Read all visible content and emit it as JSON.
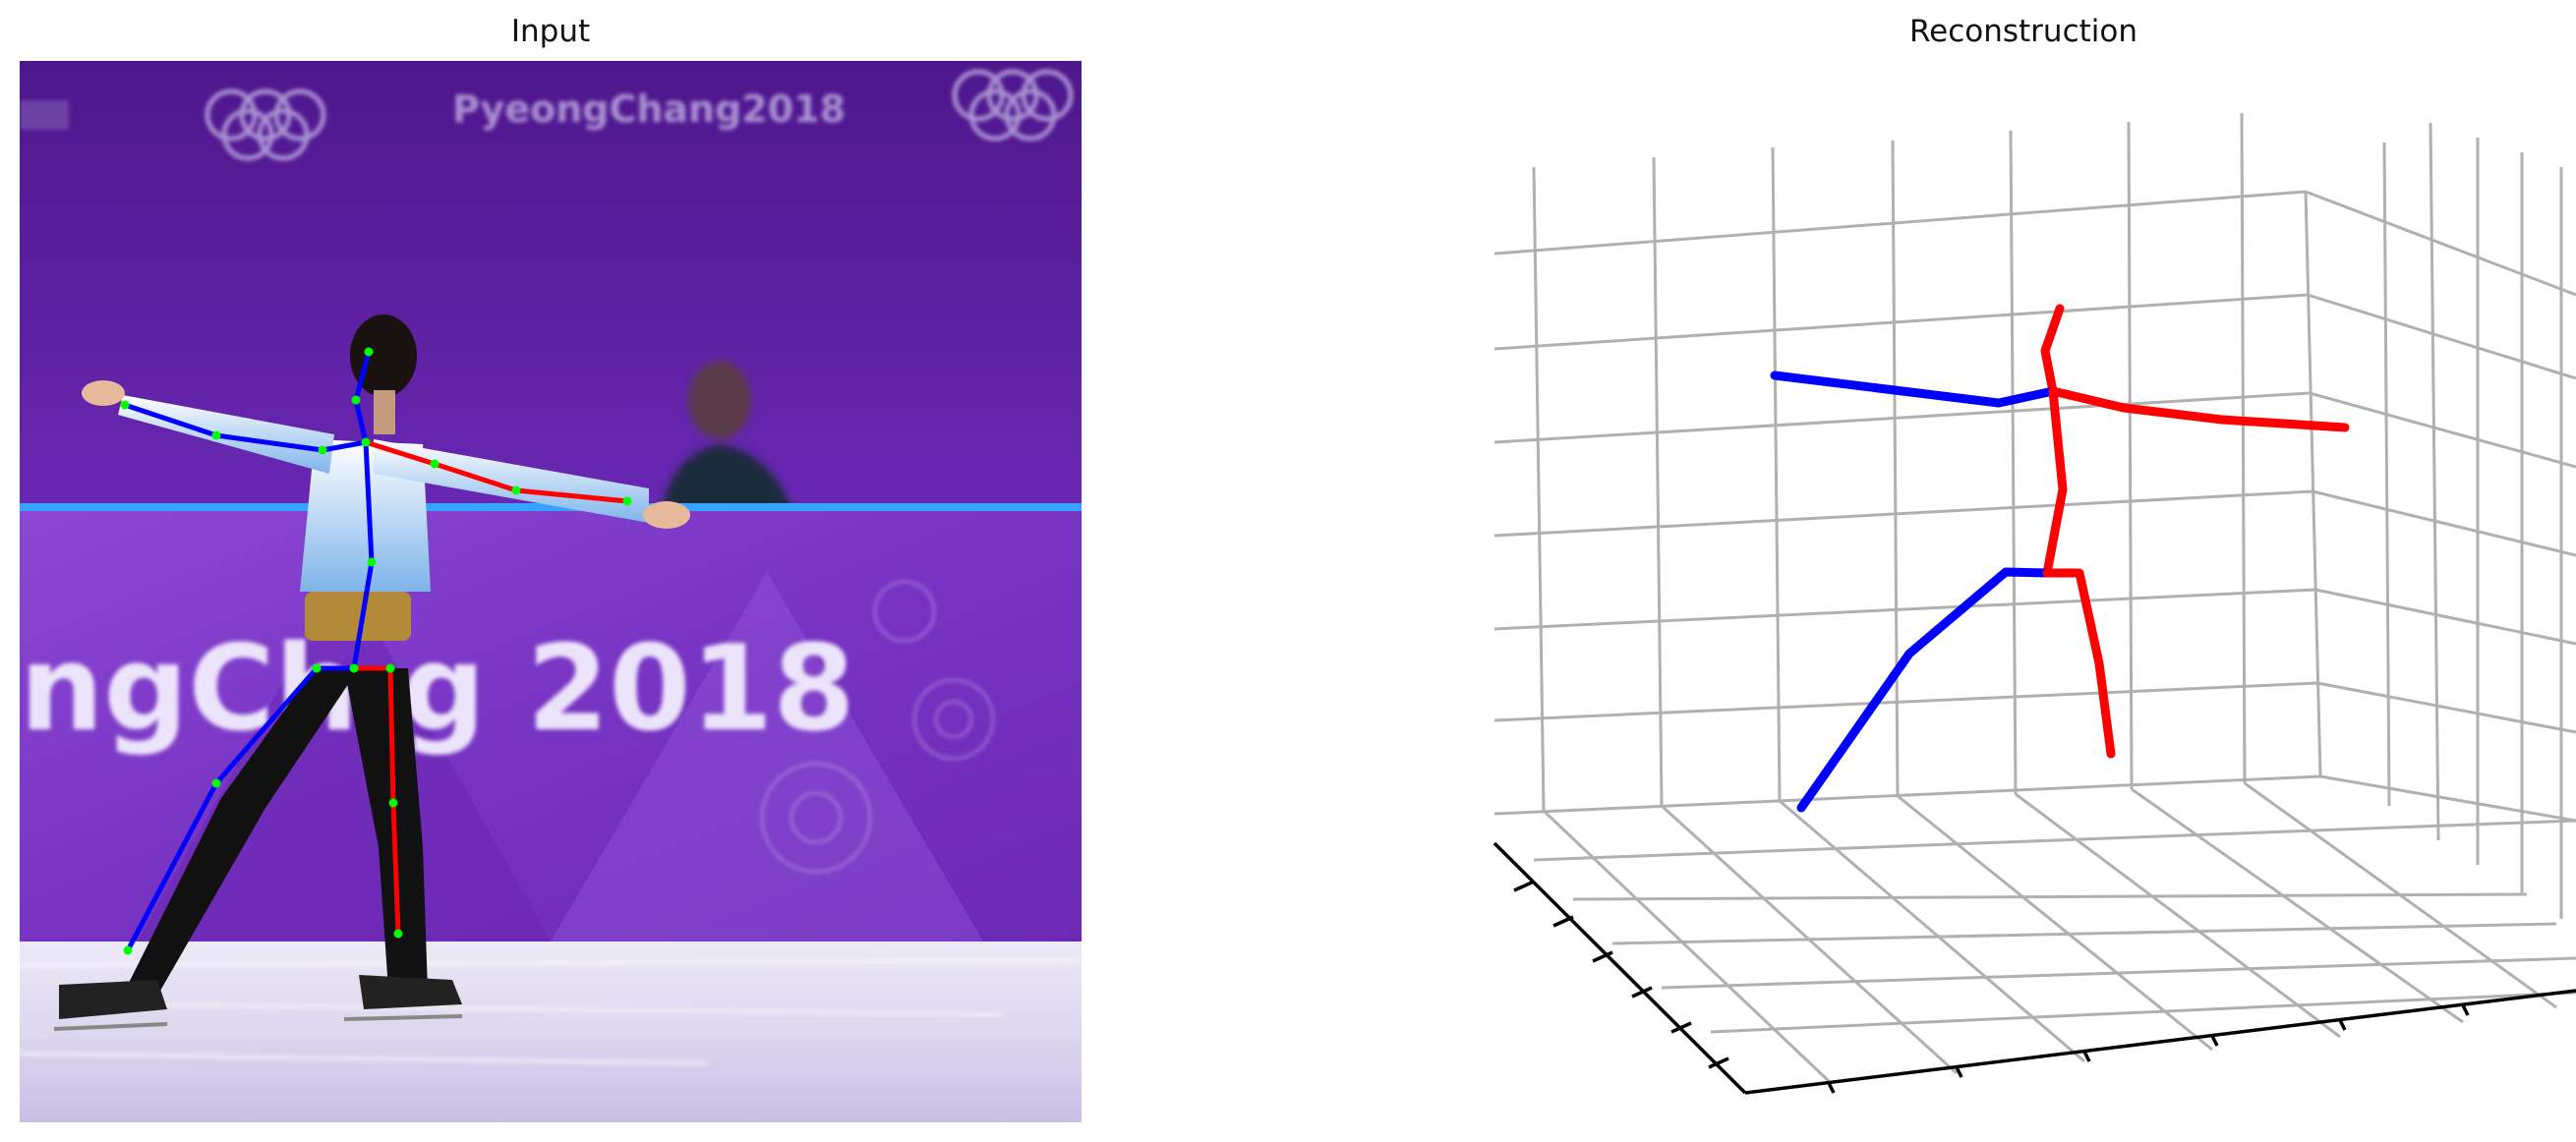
{
  "titles": {
    "input": "Input",
    "reconstruction": "Reconstruction"
  },
  "scene_text": {
    "banner_top": "PyeongChang2018",
    "banner_board": "ngCh",
    "banner_year": "g 2018"
  },
  "colors": {
    "left_limb": "#0000ff",
    "right_limb": "#ff0000",
    "keypoint": "#00ff00",
    "grid": "#b0b0b0",
    "axis": "#000000",
    "backdrop_top": "#5b1c9c",
    "board": "#7a35c8",
    "ice": "#e6e2f2"
  },
  "icons": {
    "olympic_rings": "olympic-rings-icon"
  }
}
